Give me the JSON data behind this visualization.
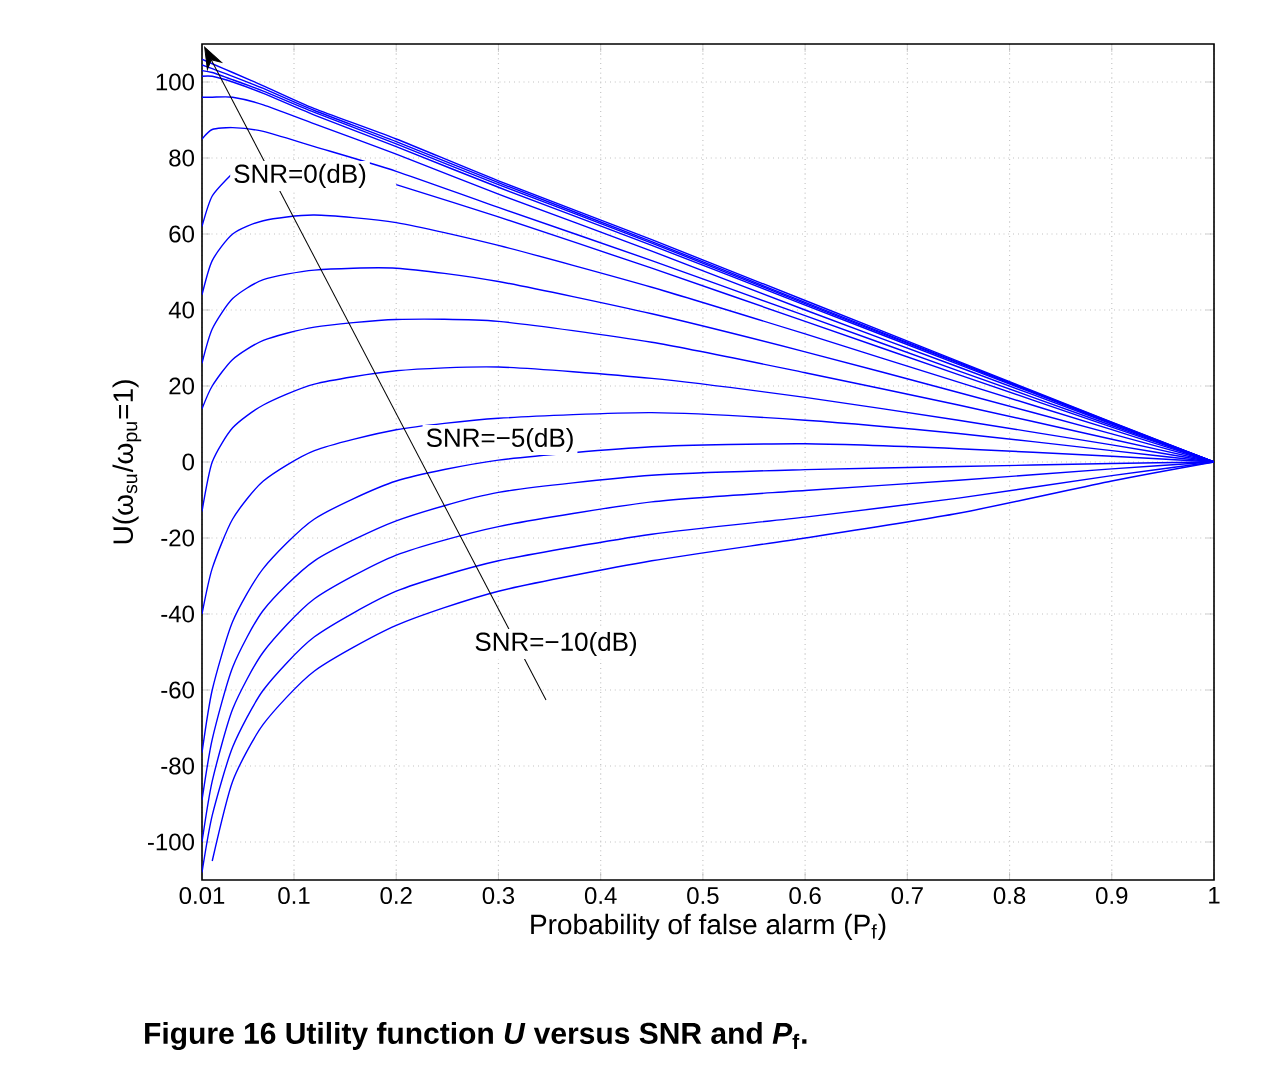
{
  "chart_data": {
    "type": "line",
    "xlabel": "Probability of false alarm (P$_{f}$)",
    "ylabel": "U(ω$_{su}$/ω$_{pu}$=1)",
    "x": [
      0.01,
      0.02,
      0.04,
      0.07,
      0.12,
      0.2,
      0.3,
      0.45,
      0.6,
      0.75,
      0.9,
      1
    ],
    "xlim": [
      0.01,
      1
    ],
    "ylim": [
      -110,
      110
    ],
    "xticks": [
      {
        "value": 0.01,
        "label": "0.01"
      },
      0.1,
      0.2,
      0.3,
      0.4,
      0.5,
      0.6,
      0.7,
      0.8,
      0.9,
      1
    ],
    "yticks": [
      -100,
      -80,
      -60,
      -40,
      -20,
      0,
      20,
      40,
      60,
      80,
      100
    ],
    "grid": true,
    "marker": "none",
    "line_style": "solid",
    "series": [
      {
        "color": "#0000ff",
        "values": [
          106,
          104.8,
          102.5,
          99,
          93,
          85,
          74,
          58.5,
          42.5,
          26.5,
          10.5,
          0
        ]
      },
      {
        "color": "#0000ff",
        "values": [
          104.5,
          103.5,
          101.5,
          98.3,
          92.5,
          84.3,
          73.5,
          58,
          42,
          26.2,
          10.4,
          0
        ]
      },
      {
        "color": "#0000ff",
        "values": [
          103,
          102.5,
          100.6,
          97.6,
          92,
          83.7,
          73,
          57.6,
          41.7,
          26,
          10.3,
          0
        ]
      },
      {
        "color": "#0000ff",
        "values": [
          101.5,
          101.5,
          100,
          97,
          91.3,
          83,
          72.3,
          57,
          41.3,
          25.7,
          10.2,
          0
        ]
      },
      {
        "color": "#0000ff",
        "values": [
          96,
          96,
          96,
          94,
          89,
          81,
          70.5,
          55.5,
          40,
          25,
          10,
          0
        ]
      },
      {
        "color": "#0000ff",
        "values": [
          85,
          87.5,
          88,
          87,
          83,
          76.5,
          67,
          53,
          38.5,
          24,
          9.6,
          0
        ]
      },
      {
        "color": "#0000ff",
        "values": [
          62,
          70,
          76,
          null,
          null,
          73,
          64.5,
          51,
          37,
          23,
          9.2,
          0
        ]
      },
      {
        "color": "#0000ff",
        "values": [
          44,
          53,
          60,
          63.5,
          65,
          63,
          57,
          46,
          33.7,
          21,
          8.5,
          0
        ]
      },
      {
        "color": "#0000ff",
        "values": [
          26,
          35,
          43,
          48,
          50.5,
          51,
          47.5,
          39,
          29,
          18.3,
          7.4,
          0
        ]
      },
      {
        "color": "#0000ff",
        "values": [
          14,
          20,
          27,
          32,
          35.5,
          37.5,
          37,
          31.5,
          23.5,
          15,
          6,
          0
        ]
      },
      {
        "color": "#0000ff",
        "values": [
          -13,
          0,
          9,
          15,
          20.5,
          24,
          25,
          22,
          17,
          11,
          4.5,
          0
        ]
      },
      {
        "color": "#0000ff",
        "values": [
          -40,
          -28,
          -15,
          -5,
          3,
          8.5,
          11.5,
          13,
          11,
          7.5,
          3,
          0
        ]
      },
      {
        "color": "#0000ff",
        "values": [
          -76.5,
          -60,
          -42,
          -28,
          -15,
          -5,
          0.5,
          4,
          4.8,
          3.5,
          1.5,
          0
        ]
      },
      {
        "color": "#0000ff",
        "values": [
          -89,
          -73,
          -54,
          -39,
          -26,
          -15.5,
          -8,
          -3.5,
          -2,
          -1.2,
          -0.4,
          0
        ]
      },
      {
        "color": "#0000ff",
        "values": [
          -100,
          -84,
          -65,
          -50,
          -36,
          -24.5,
          -17,
          -10.5,
          -7.5,
          -4.8,
          -1.8,
          0
        ]
      },
      {
        "color": "#0000ff",
        "values": [
          -108,
          -93,
          -75,
          -60,
          -46,
          -34,
          -26,
          -19,
          -14.5,
          -9.5,
          -3.6,
          0
        ]
      },
      {
        "color": "#0000ff",
        "values": [
          null,
          -105,
          -84,
          -69,
          -55,
          -43,
          -34,
          -26,
          -20,
          -13.5,
          -5,
          0
        ]
      }
    ],
    "annotations": [
      "SNR=0(dB)",
      "SNR=−5(dB)",
      "SNR=−10(dB)",
      "Figure 16 Utility function *U* versus SNR and *P*$_{f}$."
    ]
  }
}
